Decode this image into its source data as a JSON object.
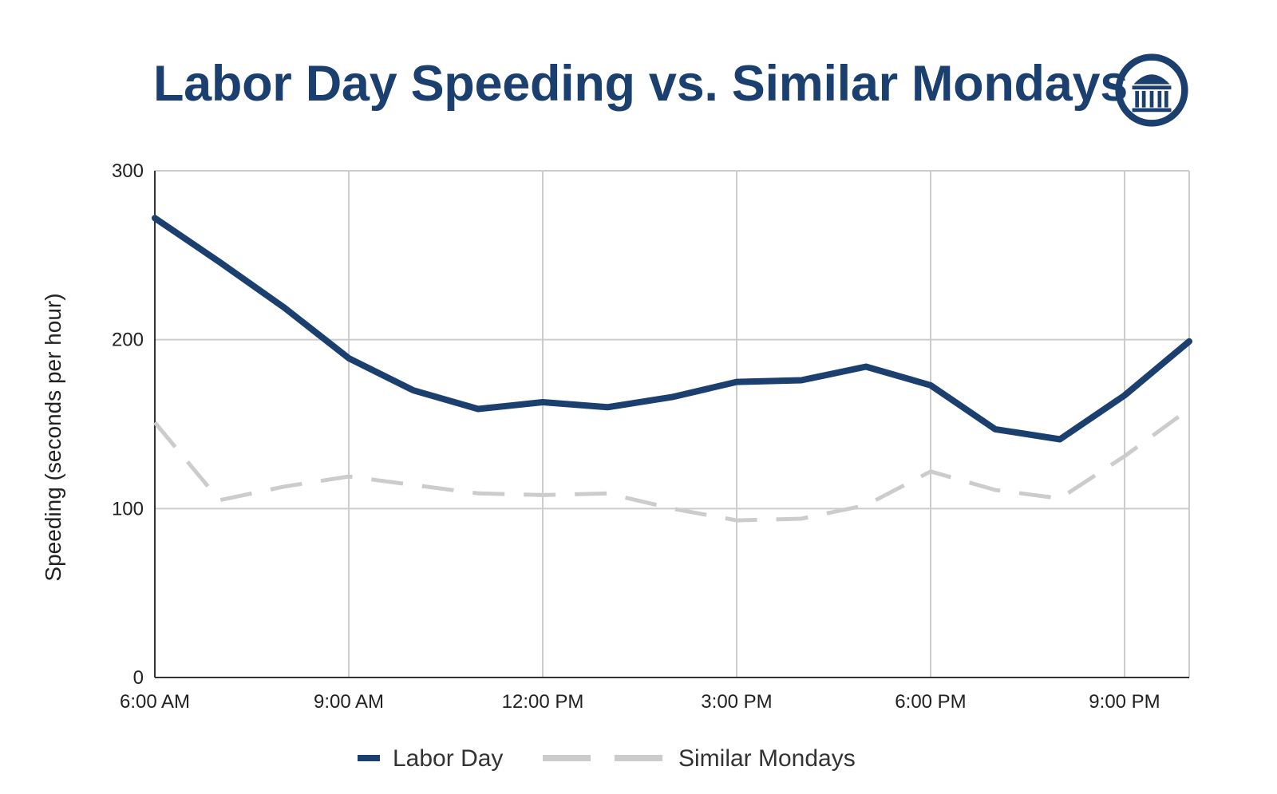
{
  "header": {
    "title": "Labor Day Speeding vs. Similar Mondays",
    "logo_icon": "capitol-building-icon"
  },
  "colors": {
    "title": "#1b3f6e",
    "labor_day": "#1b3f6e",
    "similar_mondays": "#cccccc",
    "grid": "#cccccc",
    "axis": "#333333"
  },
  "chart_data": {
    "type": "line",
    "title": "Labor Day Speeding vs. Similar Mondays",
    "xlabel": "",
    "ylabel": "Speeding (seconds per hour)",
    "ylim": [
      0,
      300
    ],
    "yticks": [
      "0",
      "100",
      "200",
      "300"
    ],
    "xticks": [
      "6:00 AM",
      "9:00 AM",
      "12:00 PM",
      "3:00 PM",
      "6:00 PM",
      "9:00 PM"
    ],
    "x": [
      "6:00 AM",
      "7:00 AM",
      "8:00 AM",
      "9:00 AM",
      "10:00 AM",
      "11:00 AM",
      "12:00 PM",
      "1:00 PM",
      "2:00 PM",
      "3:00 PM",
      "4:00 PM",
      "5:00 PM",
      "6:00 PM",
      "7:00 PM",
      "8:00 PM",
      "9:00 PM",
      "10:00 PM"
    ],
    "grid": true,
    "legend_position": "bottom",
    "series": [
      {
        "name": "Labor Day",
        "style": "solid",
        "values": [
          272,
          246,
          219,
          189,
          170,
          159,
          163,
          160,
          166,
          175,
          176,
          184,
          173,
          147,
          141,
          167,
          199
        ]
      },
      {
        "name": "Similar Mondays",
        "style": "dashed",
        "values": [
          151,
          105,
          113,
          119,
          114,
          109,
          108,
          109,
          100,
          93,
          94,
          102,
          122,
          111,
          106,
          131,
          159
        ]
      }
    ]
  }
}
